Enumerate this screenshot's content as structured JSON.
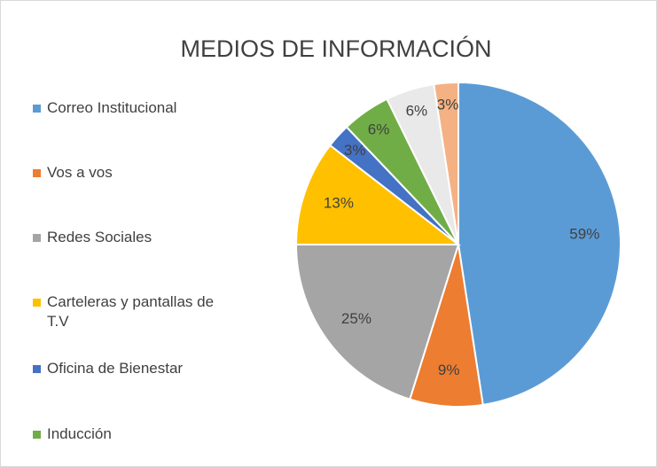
{
  "chart_data": {
    "type": "pie",
    "title": "MEDIOS DE INFORMACIÓN",
    "categories": [
      "Correo Institucional",
      "Vos a vos",
      "Redes Sociales",
      "Carteleras y pantallas de T.V",
      "Oficina de Bienestar",
      "Inducción",
      null,
      null
    ],
    "values": [
      59,
      9,
      25,
      13,
      3,
      6,
      6,
      3
    ],
    "value_labels": [
      "59%",
      "9%",
      "25%",
      "13%",
      "3%",
      "6%",
      "6%",
      "3%"
    ],
    "colors": [
      "#5b9bd5",
      "#ed7d31",
      "#a5a5a5",
      "#ffc000",
      "#4472c4",
      "#70ad47",
      "#e9e9e9",
      "#f4b183"
    ]
  }
}
